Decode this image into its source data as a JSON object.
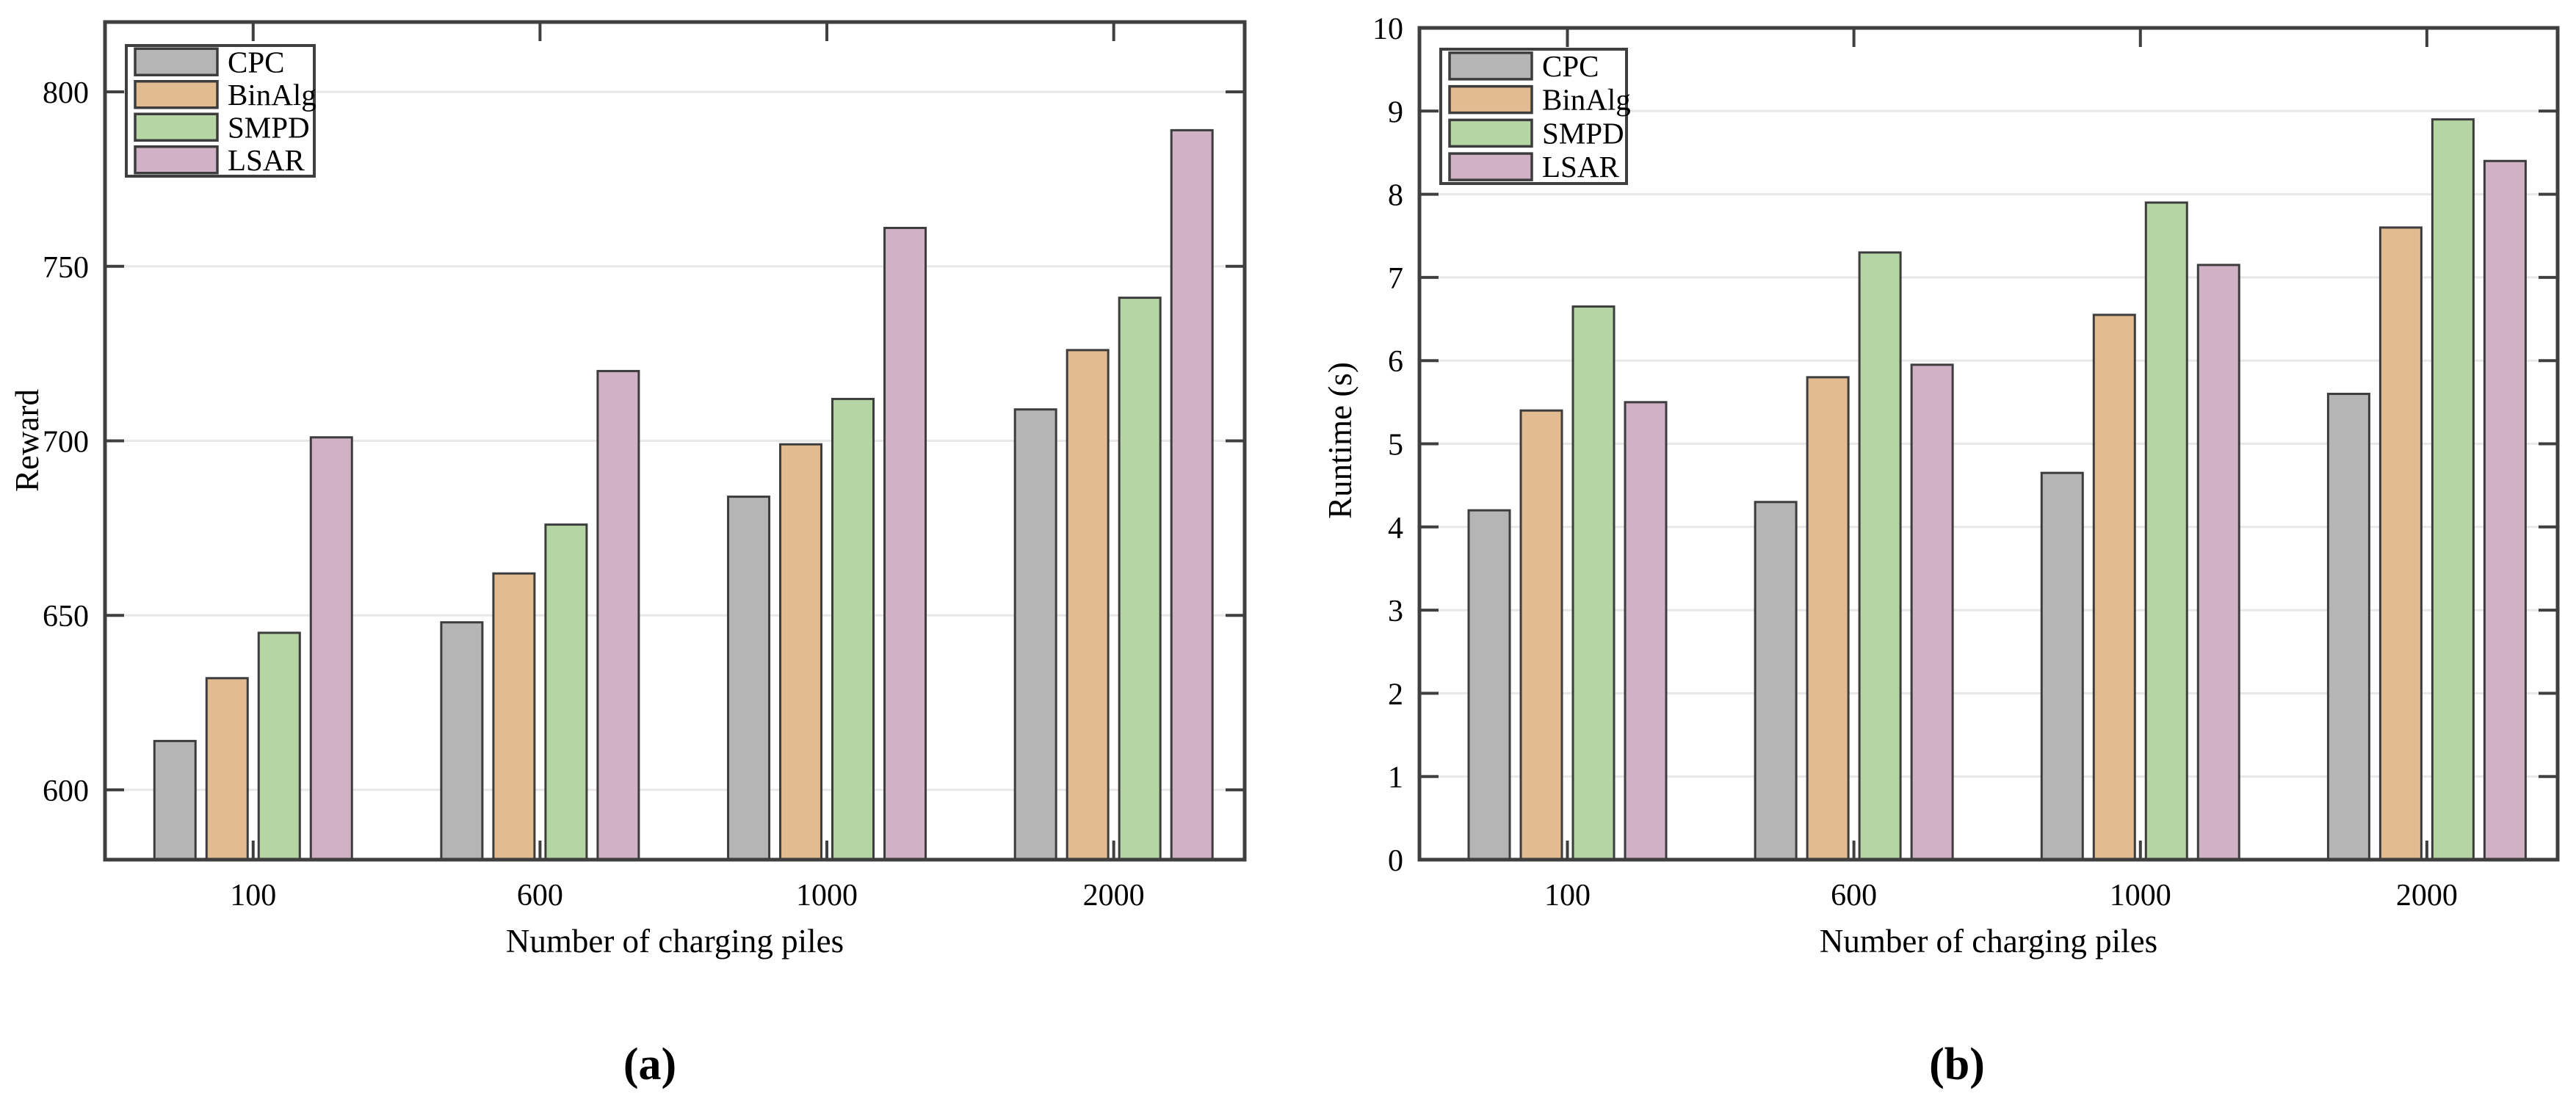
{
  "figure": {
    "background": "#ffffff",
    "colors": {
      "bar_edge": "#3d3d3d",
      "spine": "#3f3f3f",
      "gridline": "#e8e8e8",
      "text": "#000000",
      "series": {
        "CPC": "#b5b5b6",
        "BinAlg": "#e2bc90",
        "SMPD": "#b5d5a5",
        "LSAR": "#d0b1c6"
      }
    }
  },
  "chart_data": [
    {
      "id": "a",
      "type": "bar",
      "caption": "(a)",
      "xlabel": "Number of charging piles",
      "ylabel": "Reward",
      "categories": [
        "100",
        "600",
        "1000",
        "2000"
      ],
      "series": [
        {
          "name": "CPC",
          "values": [
            614,
            648,
            684,
            709
          ]
        },
        {
          "name": "BinAlg",
          "values": [
            632,
            662,
            699,
            726
          ]
        },
        {
          "name": "SMPD",
          "values": [
            645,
            676,
            712,
            741
          ]
        },
        {
          "name": "LSAR",
          "values": [
            701,
            720,
            761,
            789
          ]
        }
      ],
      "ylim": [
        580,
        820
      ],
      "yticks": [
        600,
        650,
        700,
        750,
        800
      ],
      "grid": true,
      "legend": [
        "CPC",
        "BinAlg",
        "SMPD",
        "LSAR"
      ],
      "legend_position": "top-left"
    },
    {
      "id": "b",
      "type": "bar",
      "caption": "(b)",
      "xlabel": "Number of charging piles",
      "ylabel": "Runtime (s)",
      "categories": [
        "100",
        "600",
        "1000",
        "2000"
      ],
      "series": [
        {
          "name": "CPC",
          "values": [
            4.2,
            4.3,
            4.65,
            5.6
          ]
        },
        {
          "name": "BinAlg",
          "values": [
            5.4,
            5.8,
            6.55,
            7.6
          ]
        },
        {
          "name": "SMPD",
          "values": [
            6.65,
            7.3,
            7.9,
            8.9
          ]
        },
        {
          "name": "LSAR",
          "values": [
            5.5,
            5.95,
            7.15,
            8.4
          ]
        }
      ],
      "ylim": [
        0,
        10
      ],
      "yticks": [
        0,
        1,
        2,
        3,
        4,
        5,
        6,
        7,
        8,
        9,
        10
      ],
      "grid": true,
      "legend": [
        "CPC",
        "BinAlg",
        "SMPD",
        "LSAR"
      ],
      "legend_position": "top-left"
    }
  ]
}
